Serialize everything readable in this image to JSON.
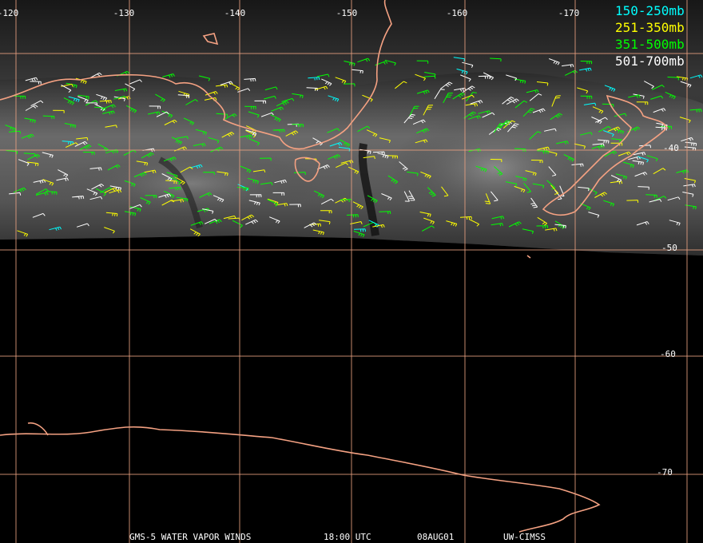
{
  "map": {
    "longitude_labels": [
      "-120",
      "-130",
      "-140",
      "-150",
      "-160",
      "-170"
    ],
    "latitude_labels": [
      "-40",
      "-50",
      "-60",
      "-70"
    ],
    "legend": [
      {
        "label": "150-250mb",
        "color": "#00ffff"
      },
      {
        "label": "251-350mb",
        "color": "#ffff00"
      },
      {
        "label": "351-500mb",
        "color": "#00ff00"
      },
      {
        "label": "501-700mb",
        "color": "#ffffff"
      }
    ],
    "footer": {
      "satellite": "GMS-5 WATER VAPOR WINDS",
      "time": "18:00 UTC",
      "date": "08AUG01",
      "source": "UW-CIMSS"
    }
  }
}
